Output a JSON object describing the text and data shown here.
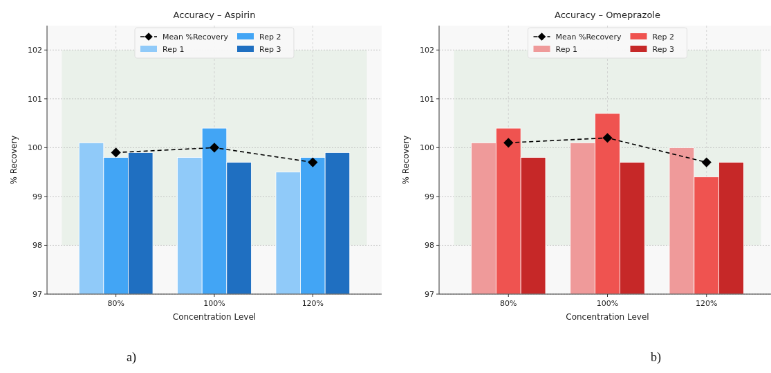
{
  "chart_data": [
    {
      "type": "bar",
      "title": "Accuracy – Aspirin",
      "xlabel": "Concentration Level",
      "ylabel": "% Recovery",
      "categories": [
        "80%",
        "100%",
        "120%"
      ],
      "series": [
        {
          "name": "Mean %Recovery",
          "type": "line",
          "color": "#000000",
          "marker": "diamond",
          "line_style": "dashed",
          "values": [
            99.9,
            100.0,
            99.7
          ]
        },
        {
          "name": "Rep 1",
          "color": "#90caf9",
          "values": [
            100.1,
            99.8,
            99.5
          ]
        },
        {
          "name": "Rep 2",
          "color": "#42a5f5",
          "values": [
            99.8,
            100.4,
            99.8
          ]
        },
        {
          "name": "Rep 3",
          "color": "#1f6fc1",
          "values": [
            99.9,
            99.7,
            99.9
          ]
        }
      ],
      "ylim": [
        97,
        102.5
      ],
      "yticks": [
        97,
        98,
        99,
        100,
        101,
        102
      ],
      "grid": true,
      "legend": "top",
      "bands": [
        {
          "axis": "y",
          "from": 98,
          "to": 102,
          "color": "#e6efe6"
        }
      ],
      "annotations": [
        "a)"
      ]
    },
    {
      "type": "bar",
      "title": "Accuracy – Omeprazole",
      "xlabel": "Concentration Level",
      "ylabel": "% Recovery",
      "categories": [
        "80%",
        "100%",
        "120%"
      ],
      "series": [
        {
          "name": "Mean %Recovery",
          "type": "line",
          "color": "#000000",
          "marker": "diamond",
          "line_style": "dashed",
          "values": [
            100.1,
            100.2,
            99.7
          ]
        },
        {
          "name": "Rep 1",
          "color": "#ef9a9a",
          "values": [
            100.1,
            100.1,
            100.0
          ]
        },
        {
          "name": "Rep 2",
          "color": "#ef5350",
          "values": [
            100.4,
            100.7,
            99.4
          ]
        },
        {
          "name": "Rep 3",
          "color": "#c62828",
          "values": [
            99.8,
            99.7,
            99.7
          ]
        }
      ],
      "ylim": [
        97,
        102.5
      ],
      "yticks": [
        97,
        98,
        99,
        100,
        101,
        102
      ],
      "grid": true,
      "legend": "top",
      "bands": [
        {
          "axis": "y",
          "from": 98,
          "to": 102,
          "color": "#e6efe6"
        }
      ],
      "annotations": [
        "b)"
      ]
    }
  ]
}
